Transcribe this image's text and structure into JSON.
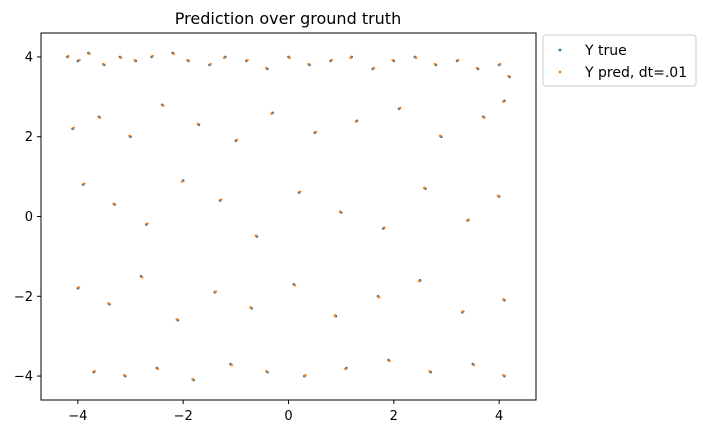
{
  "chart_data": {
    "type": "scatter",
    "title": "Prediction over ground truth",
    "xlabel": "",
    "ylabel": "",
    "xlim": [
      -4.7,
      4.7
    ],
    "ylim": [
      -4.6,
      4.6
    ],
    "x_ticks": [
      -4,
      -2,
      0,
      2,
      4
    ],
    "y_ticks": [
      -4,
      -2,
      0,
      2,
      4
    ],
    "x_tick_labels": [
      "−4",
      "−2",
      "0",
      "2",
      "4"
    ],
    "y_tick_labels": [
      "−4",
      "−2",
      "0",
      "2",
      "4"
    ],
    "grid": false,
    "legend_position": "outside-top-right",
    "series": [
      {
        "name": "Y true",
        "color": "#1f77b4",
        "x": [
          -4.2,
          -4.0,
          -3.8,
          -3.5,
          -3.2,
          -2.9,
          -2.6,
          -2.2,
          -1.9,
          -1.5,
          -1.2,
          -0.8,
          -0.4,
          0.0,
          0.4,
          0.8,
          1.2,
          1.6,
          2.0,
          2.4,
          2.8,
          3.2,
          3.6,
          4.0,
          4.2,
          -4.1,
          -3.6,
          -3.0,
          -2.4,
          -1.7,
          -1.0,
          -0.3,
          0.5,
          1.3,
          2.1,
          2.9,
          3.7,
          4.1,
          -3.9,
          -3.3,
          -2.7,
          -2.0,
          -1.3,
          -0.6,
          0.2,
          1.0,
          1.8,
          2.6,
          3.4,
          4.0,
          -4.0,
          -3.4,
          -2.8,
          -2.1,
          -1.4,
          -0.7,
          0.1,
          0.9,
          1.7,
          2.5,
          3.3,
          4.1,
          -3.7,
          -3.1,
          -2.5,
          -1.8,
          -1.1,
          -0.4,
          0.3,
          1.1,
          1.9,
          2.7,
          3.5,
          4.1
        ],
        "y": [
          4.0,
          3.9,
          4.1,
          3.8,
          4.0,
          3.9,
          4.0,
          4.1,
          3.9,
          3.8,
          4.0,
          3.9,
          3.7,
          4.0,
          3.8,
          3.9,
          4.0,
          3.7,
          3.9,
          4.0,
          3.8,
          3.9,
          3.7,
          3.8,
          3.5,
          2.2,
          2.5,
          2.0,
          2.8,
          2.3,
          1.9,
          2.6,
          2.1,
          2.4,
          2.7,
          2.0,
          2.5,
          2.9,
          0.8,
          0.3,
          -0.2,
          0.9,
          0.4,
          -0.5,
          0.6,
          0.1,
          -0.3,
          0.7,
          -0.1,
          0.5,
          -1.8,
          -2.2,
          -1.5,
          -2.6,
          -1.9,
          -2.3,
          -1.7,
          -2.5,
          -2.0,
          -1.6,
          -2.4,
          -2.1,
          -3.9,
          -4.0,
          -3.8,
          -4.1,
          -3.7,
          -3.9,
          -4.0,
          -3.8,
          -3.6,
          -3.9,
          -3.7,
          -4.0
        ]
      },
      {
        "name": "Y pred, dt=.01",
        "color": "#ff7f0e",
        "x": [
          -4.18,
          -3.97,
          -3.78,
          -3.52,
          -3.18,
          -2.92,
          -2.58,
          -2.18,
          -1.92,
          -1.48,
          -1.22,
          -0.78,
          -0.42,
          0.02,
          0.38,
          0.82,
          1.18,
          1.62,
          1.98,
          2.42,
          2.78,
          3.22,
          3.58,
          4.02,
          4.18,
          -4.08,
          -3.58,
          -3.02,
          -2.38,
          -1.72,
          -0.98,
          -0.32,
          0.52,
          1.28,
          2.12,
          2.88,
          3.72,
          4.08,
          -3.88,
          -3.32,
          -2.68,
          -2.02,
          -1.28,
          -0.62,
          0.22,
          0.98,
          1.82,
          2.58,
          3.42,
          3.98,
          -3.98,
          -3.42,
          -2.78,
          -2.12,
          -1.38,
          -0.72,
          0.12,
          0.88,
          1.72,
          2.48,
          3.32,
          4.08,
          -3.68,
          -3.12,
          -2.48,
          -1.82,
          -1.08,
          -0.42,
          0.32,
          1.08,
          1.92,
          2.68,
          3.52,
          4.08
        ],
        "y": [
          4.02,
          3.92,
          4.08,
          3.82,
          3.98,
          3.92,
          4.02,
          4.08,
          3.92,
          3.82,
          3.98,
          3.92,
          3.72,
          3.98,
          3.82,
          3.92,
          3.98,
          3.72,
          3.92,
          3.98,
          3.82,
          3.92,
          3.72,
          3.82,
          3.52,
          2.22,
          2.48,
          2.02,
          2.78,
          2.32,
          1.92,
          2.58,
          2.12,
          2.38,
          2.72,
          2.02,
          2.48,
          2.88,
          0.82,
          0.32,
          -0.18,
          0.88,
          0.42,
          -0.48,
          0.62,
          0.12,
          -0.28,
          0.72,
          -0.08,
          0.52,
          -1.78,
          -2.18,
          -1.52,
          -2.58,
          -1.88,
          -2.28,
          -1.72,
          -2.48,
          -2.02,
          -1.62,
          -2.38,
          -2.08,
          -3.88,
          -3.98,
          -3.82,
          -4.08,
          -3.72,
          -3.88,
          -3.98,
          -3.82,
          -3.62,
          -3.88,
          -3.72,
          -3.98
        ]
      }
    ]
  }
}
